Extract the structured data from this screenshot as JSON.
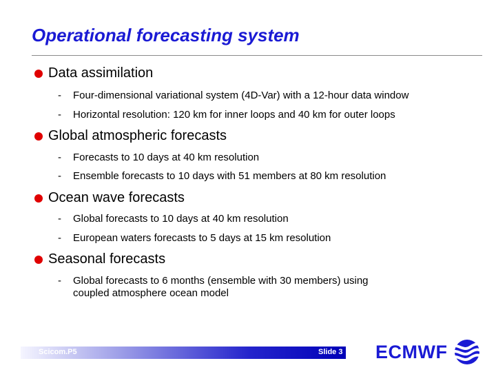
{
  "slide": {
    "title": "Operational forecasting system",
    "sections": [
      {
        "heading": "Data assimilation",
        "items": [
          "Four-dimensional variational system (4D-Var) with a 12-hour data window",
          "Horizontal resolution: 120 km for inner loops and 40 km for outer loops"
        ]
      },
      {
        "heading": "Global atmospheric forecasts",
        "items": [
          "Forecasts to 10 days at 40 km resolution",
          "Ensemble forecasts to 10 days with 51 members at 80 km resolution"
        ]
      },
      {
        "heading": "Ocean wave forecasts",
        "items": [
          "Global forecasts to 10 days at 40 km resolution",
          "European waters forecasts to 5 days at 15 km resolution"
        ]
      },
      {
        "heading": "Seasonal forecasts",
        "items": [
          "Global forecasts to 6 months (ensemble with 30 members) using coupled atmosphere ocean model"
        ]
      }
    ],
    "sub_marker": "-"
  },
  "footer": {
    "left_label": "Scicom.P5",
    "slide_label": "Slide 3",
    "logo_text": "ECMWF",
    "bar_color": "#0000b8"
  },
  "colors": {
    "title": "#1a1ad4",
    "bullet": "#e00000"
  }
}
